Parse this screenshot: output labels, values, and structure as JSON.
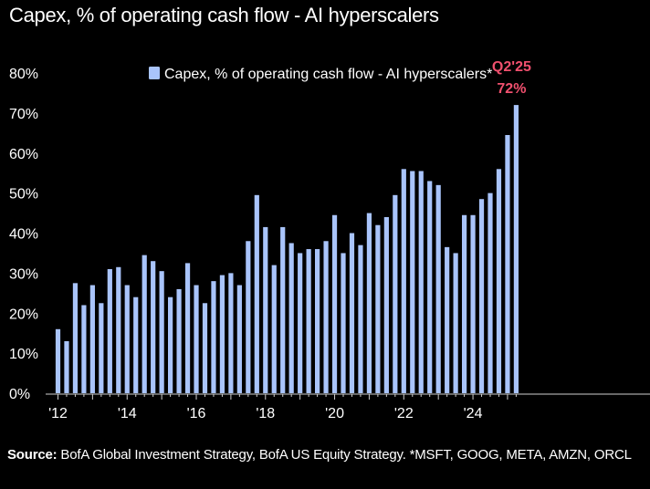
{
  "chart_data": {
    "type": "bar",
    "title": "Capex, % of operating cash flow - AI hyperscalers",
    "series": [
      {
        "name": "Capex, % of operating cash flow - AI hyperscalers*",
        "color": "#a9c4fb",
        "values": [
          16,
          13,
          27.5,
          22,
          27,
          22.5,
          31,
          31.5,
          27,
          24,
          34.5,
          33,
          30.5,
          24,
          26,
          32.5,
          27,
          22.5,
          28,
          29.5,
          30,
          27,
          38,
          49.5,
          41.5,
          32,
          41.5,
          37.5,
          35,
          36,
          36,
          38,
          44.5,
          35,
          40,
          37,
          45,
          42,
          44,
          49.5,
          56,
          55.5,
          55.5,
          53,
          52,
          36.5,
          35,
          44.5,
          44.5,
          48.5,
          50,
          56,
          64.5,
          72
        ]
      }
    ],
    "x_tick_labels": [
      "'12",
      "'14",
      "'16",
      "'18",
      "'20",
      "'22",
      "'24"
    ],
    "x_start_year": 2012,
    "x_start_quarter": 1,
    "ylim": [
      0,
      80
    ],
    "y_ticks": [
      0,
      10,
      20,
      30,
      40,
      50,
      60,
      70,
      80
    ],
    "y_tick_suffix": "%",
    "grid": false,
    "legend_position": "top",
    "annotation": {
      "label": "Q2'25",
      "value_label": "72%",
      "color": "#f0506e"
    }
  },
  "source": {
    "label": "Source:",
    "text": " BofA Global Investment Strategy, BofA US Equity Strategy. *MSFT, GOOG, META, AMZN, ORCL"
  }
}
